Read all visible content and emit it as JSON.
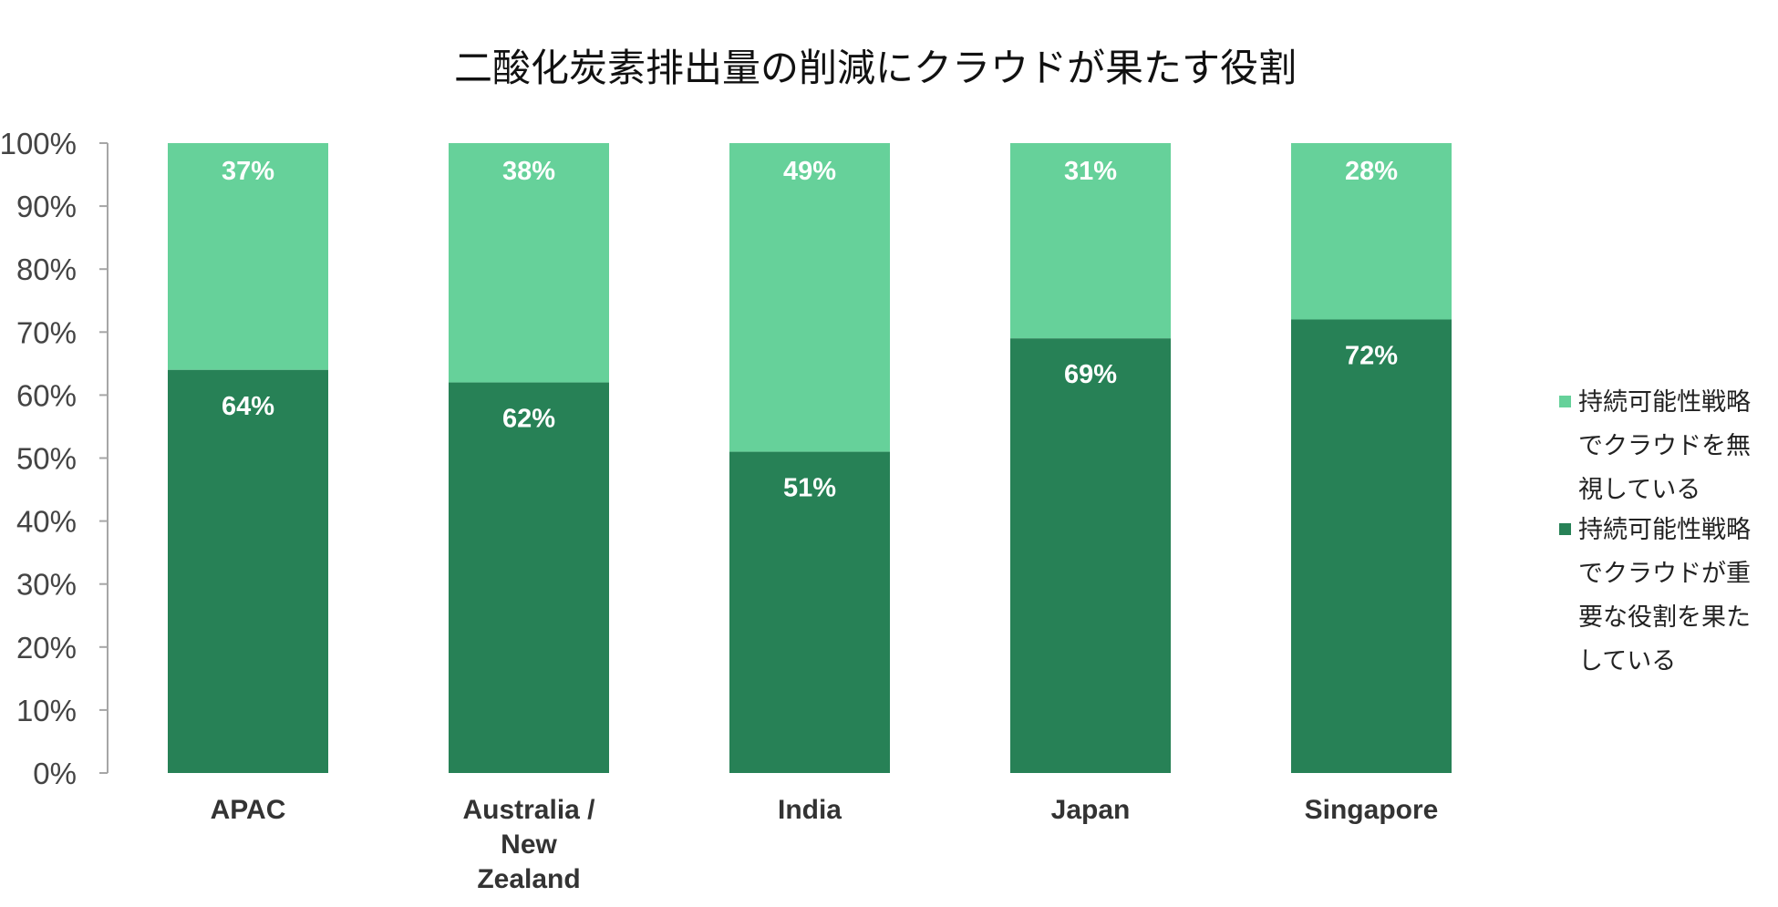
{
  "chart_data": {
    "type": "bar",
    "stacked": true,
    "title": "二酸化炭素排出量の削減にクラウドが果たす役割",
    "categories": [
      [
        "APAC"
      ],
      [
        "Australia /",
        "New",
        "Zealand"
      ],
      [
        "India"
      ],
      [
        "Japan"
      ],
      [
        "Singapore"
      ]
    ],
    "series": [
      {
        "name_lines": [
          "持続可能性戦略",
          "でクラウドが重",
          "要な役割を果た",
          "している"
        ],
        "color": "#278156",
        "values": [
          64,
          62,
          51,
          69,
          72
        ],
        "labels": [
          "64%",
          "62%",
          "51%",
          "69%",
          "72%"
        ]
      },
      {
        "name_lines": [
          "持続可能性戦略",
          "でクラウドを無",
          "視している"
        ],
        "color": "#66d19a",
        "values": [
          37,
          38,
          49,
          31,
          28
        ],
        "labels": [
          "37%",
          "38%",
          "49%",
          "31%",
          "28%"
        ]
      }
    ],
    "ylim": [
      0,
      100
    ],
    "yticks": [
      0,
      10,
      20,
      30,
      40,
      50,
      60,
      70,
      80,
      90,
      100
    ],
    "ytick_labels": [
      "0%",
      "10%",
      "20%",
      "30%",
      "40%",
      "50%",
      "60%",
      "70%",
      "80%",
      "90%",
      "100%"
    ],
    "legend_position": "right",
    "legend_order": [
      1,
      0
    ],
    "grid": false,
    "axis_color": "#a6a6a6"
  }
}
